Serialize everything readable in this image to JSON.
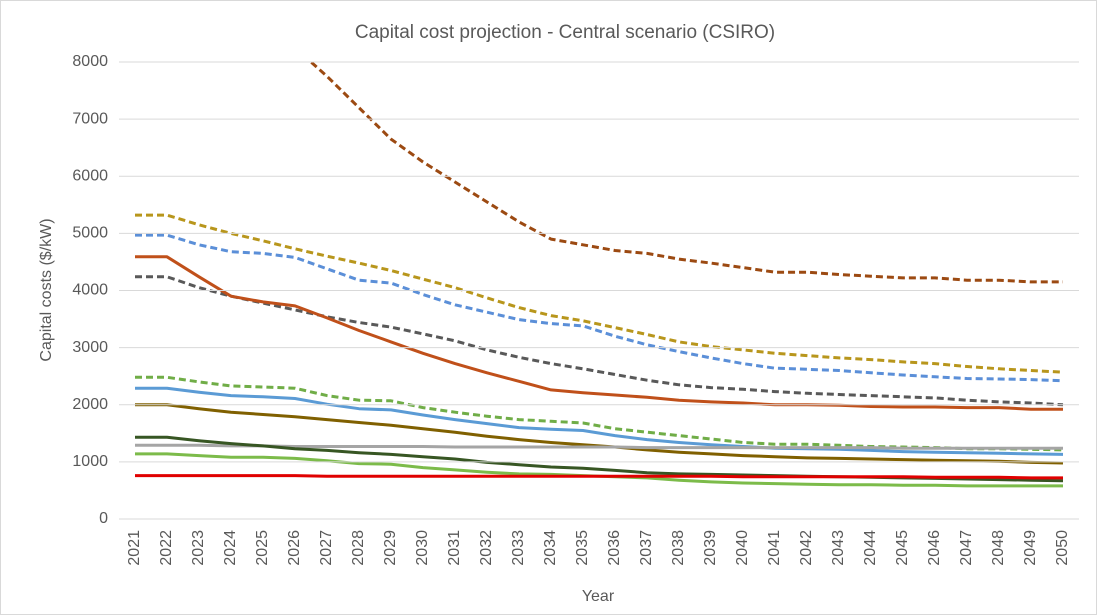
{
  "chart_data": {
    "type": "line",
    "title": "Capital cost projection - Central scenario (CSIRO)",
    "x_label": "Year",
    "y_label": "Capital costs ($/kW)",
    "categories": [
      "2021",
      "2022",
      "2023",
      "2024",
      "2025",
      "2026",
      "2027",
      "2028",
      "2029",
      "2030",
      "2031",
      "2032",
      "2033",
      "2034",
      "2035",
      "2036",
      "2037",
      "2038",
      "2039",
      "2040",
      "2041",
      "2042",
      "2043",
      "2044",
      "2045",
      "2046",
      "2047",
      "2048",
      "2049",
      "2050"
    ],
    "ylim": [
      0,
      8000
    ],
    "yticks": [
      0,
      1000,
      2000,
      3000,
      4000,
      5000,
      6000,
      7000,
      8000
    ],
    "grid": true,
    "series": [
      {
        "color": "#9c4a12",
        "dash": true,
        "values": [
          null,
          null,
          null,
          null,
          null,
          8250,
          7750,
          7200,
          6650,
          6250,
          5900,
          5550,
          5200,
          4900,
          4800,
          4700,
          4650,
          4550,
          4480,
          4400,
          4320,
          4320,
          4280,
          4250,
          4220,
          4220,
          4180,
          4180,
          4150,
          4150
        ]
      },
      {
        "color": "#b8961c",
        "dash": true,
        "values": [
          5320,
          5320,
          5150,
          5000,
          4870,
          4730,
          4600,
          4480,
          4350,
          4200,
          4050,
          3870,
          3700,
          3560,
          3470,
          3350,
          3230,
          3100,
          3020,
          2960,
          2900,
          2860,
          2820,
          2790,
          2750,
          2720,
          2670,
          2630,
          2600,
          2570
        ]
      },
      {
        "color": "#5b8fd8",
        "dash": true,
        "values": [
          4970,
          4970,
          4800,
          4680,
          4650,
          4580,
          4380,
          4180,
          4130,
          3930,
          3750,
          3620,
          3490,
          3420,
          3380,
          3200,
          3050,
          2930,
          2820,
          2720,
          2640,
          2620,
          2600,
          2560,
          2520,
          2490,
          2460,
          2450,
          2440,
          2420
        ]
      },
      {
        "color": "#595959",
        "dash": true,
        "values": [
          4240,
          4240,
          4050,
          3900,
          3780,
          3660,
          3540,
          3440,
          3360,
          3240,
          3120,
          2960,
          2830,
          2720,
          2630,
          2530,
          2430,
          2350,
          2300,
          2270,
          2230,
          2200,
          2180,
          2160,
          2140,
          2120,
          2080,
          2050,
          2030,
          2000
        ]
      },
      {
        "color": "#c0501a",
        "dash": false,
        "values": [
          4590,
          4590,
          4240,
          3900,
          3800,
          3730,
          3520,
          3300,
          3100,
          2900,
          2720,
          2560,
          2410,
          2260,
          2210,
          2170,
          2130,
          2080,
          2050,
          2030,
          2000,
          2000,
          1990,
          1970,
          1960,
          1960,
          1950,
          1950,
          1920,
          1920
        ]
      },
      {
        "color": "#70ad47",
        "dash": true,
        "values": [
          2480,
          2480,
          2400,
          2330,
          2310,
          2290,
          2160,
          2080,
          2070,
          1950,
          1870,
          1800,
          1740,
          1710,
          1680,
          1580,
          1520,
          1460,
          1400,
          1340,
          1310,
          1310,
          1290,
          1270,
          1260,
          1250,
          1230,
          1230,
          1220,
          1210
        ]
      },
      {
        "color": "#5b9bd5",
        "dash": false,
        "values": [
          2290,
          2290,
          2220,
          2160,
          2140,
          2110,
          2010,
          1930,
          1910,
          1820,
          1740,
          1670,
          1600,
          1570,
          1550,
          1460,
          1390,
          1340,
          1300,
          1270,
          1240,
          1230,
          1220,
          1200,
          1180,
          1170,
          1160,
          1150,
          1140,
          1130
        ]
      },
      {
        "color": "#806000",
        "dash": false,
        "values": [
          2000,
          2000,
          1930,
          1870,
          1830,
          1790,
          1740,
          1690,
          1640,
          1580,
          1520,
          1450,
          1390,
          1340,
          1300,
          1260,
          1210,
          1170,
          1140,
          1110,
          1090,
          1070,
          1060,
          1050,
          1040,
          1030,
          1020,
          1010,
          990,
          980
        ]
      },
      {
        "color": "#a5a5a5",
        "dash": false,
        "values": [
          1290,
          1290,
          1290,
          1280,
          1280,
          1270,
          1270,
          1270,
          1270,
          1270,
          1260,
          1260,
          1260,
          1260,
          1260,
          1260,
          1250,
          1250,
          1250,
          1250,
          1250,
          1250,
          1250,
          1250,
          1240,
          1240,
          1240,
          1240,
          1240,
          1240
        ]
      },
      {
        "color": "#375623",
        "dash": false,
        "values": [
          1430,
          1430,
          1370,
          1320,
          1280,
          1230,
          1200,
          1160,
          1130,
          1090,
          1050,
          990,
          950,
          910,
          890,
          850,
          810,
          790,
          780,
          770,
          760,
          750,
          740,
          730,
          720,
          710,
          700,
          690,
          680,
          670
        ]
      },
      {
        "color": "#7cbb4a",
        "dash": false,
        "values": [
          1140,
          1140,
          1110,
          1080,
          1080,
          1060,
          1020,
          970,
          960,
          900,
          860,
          820,
          790,
          780,
          760,
          740,
          720,
          680,
          650,
          630,
          620,
          610,
          600,
          600,
          590,
          590,
          580,
          580,
          580,
          580
        ]
      },
      {
        "color": "#e00000",
        "dash": false,
        "values": [
          760,
          760,
          760,
          760,
          760,
          760,
          750,
          750,
          750,
          750,
          750,
          750,
          750,
          750,
          750,
          750,
          750,
          750,
          750,
          740,
          740,
          740,
          740,
          740,
          740,
          730,
          730,
          730,
          720,
          720
        ]
      }
    ]
  }
}
